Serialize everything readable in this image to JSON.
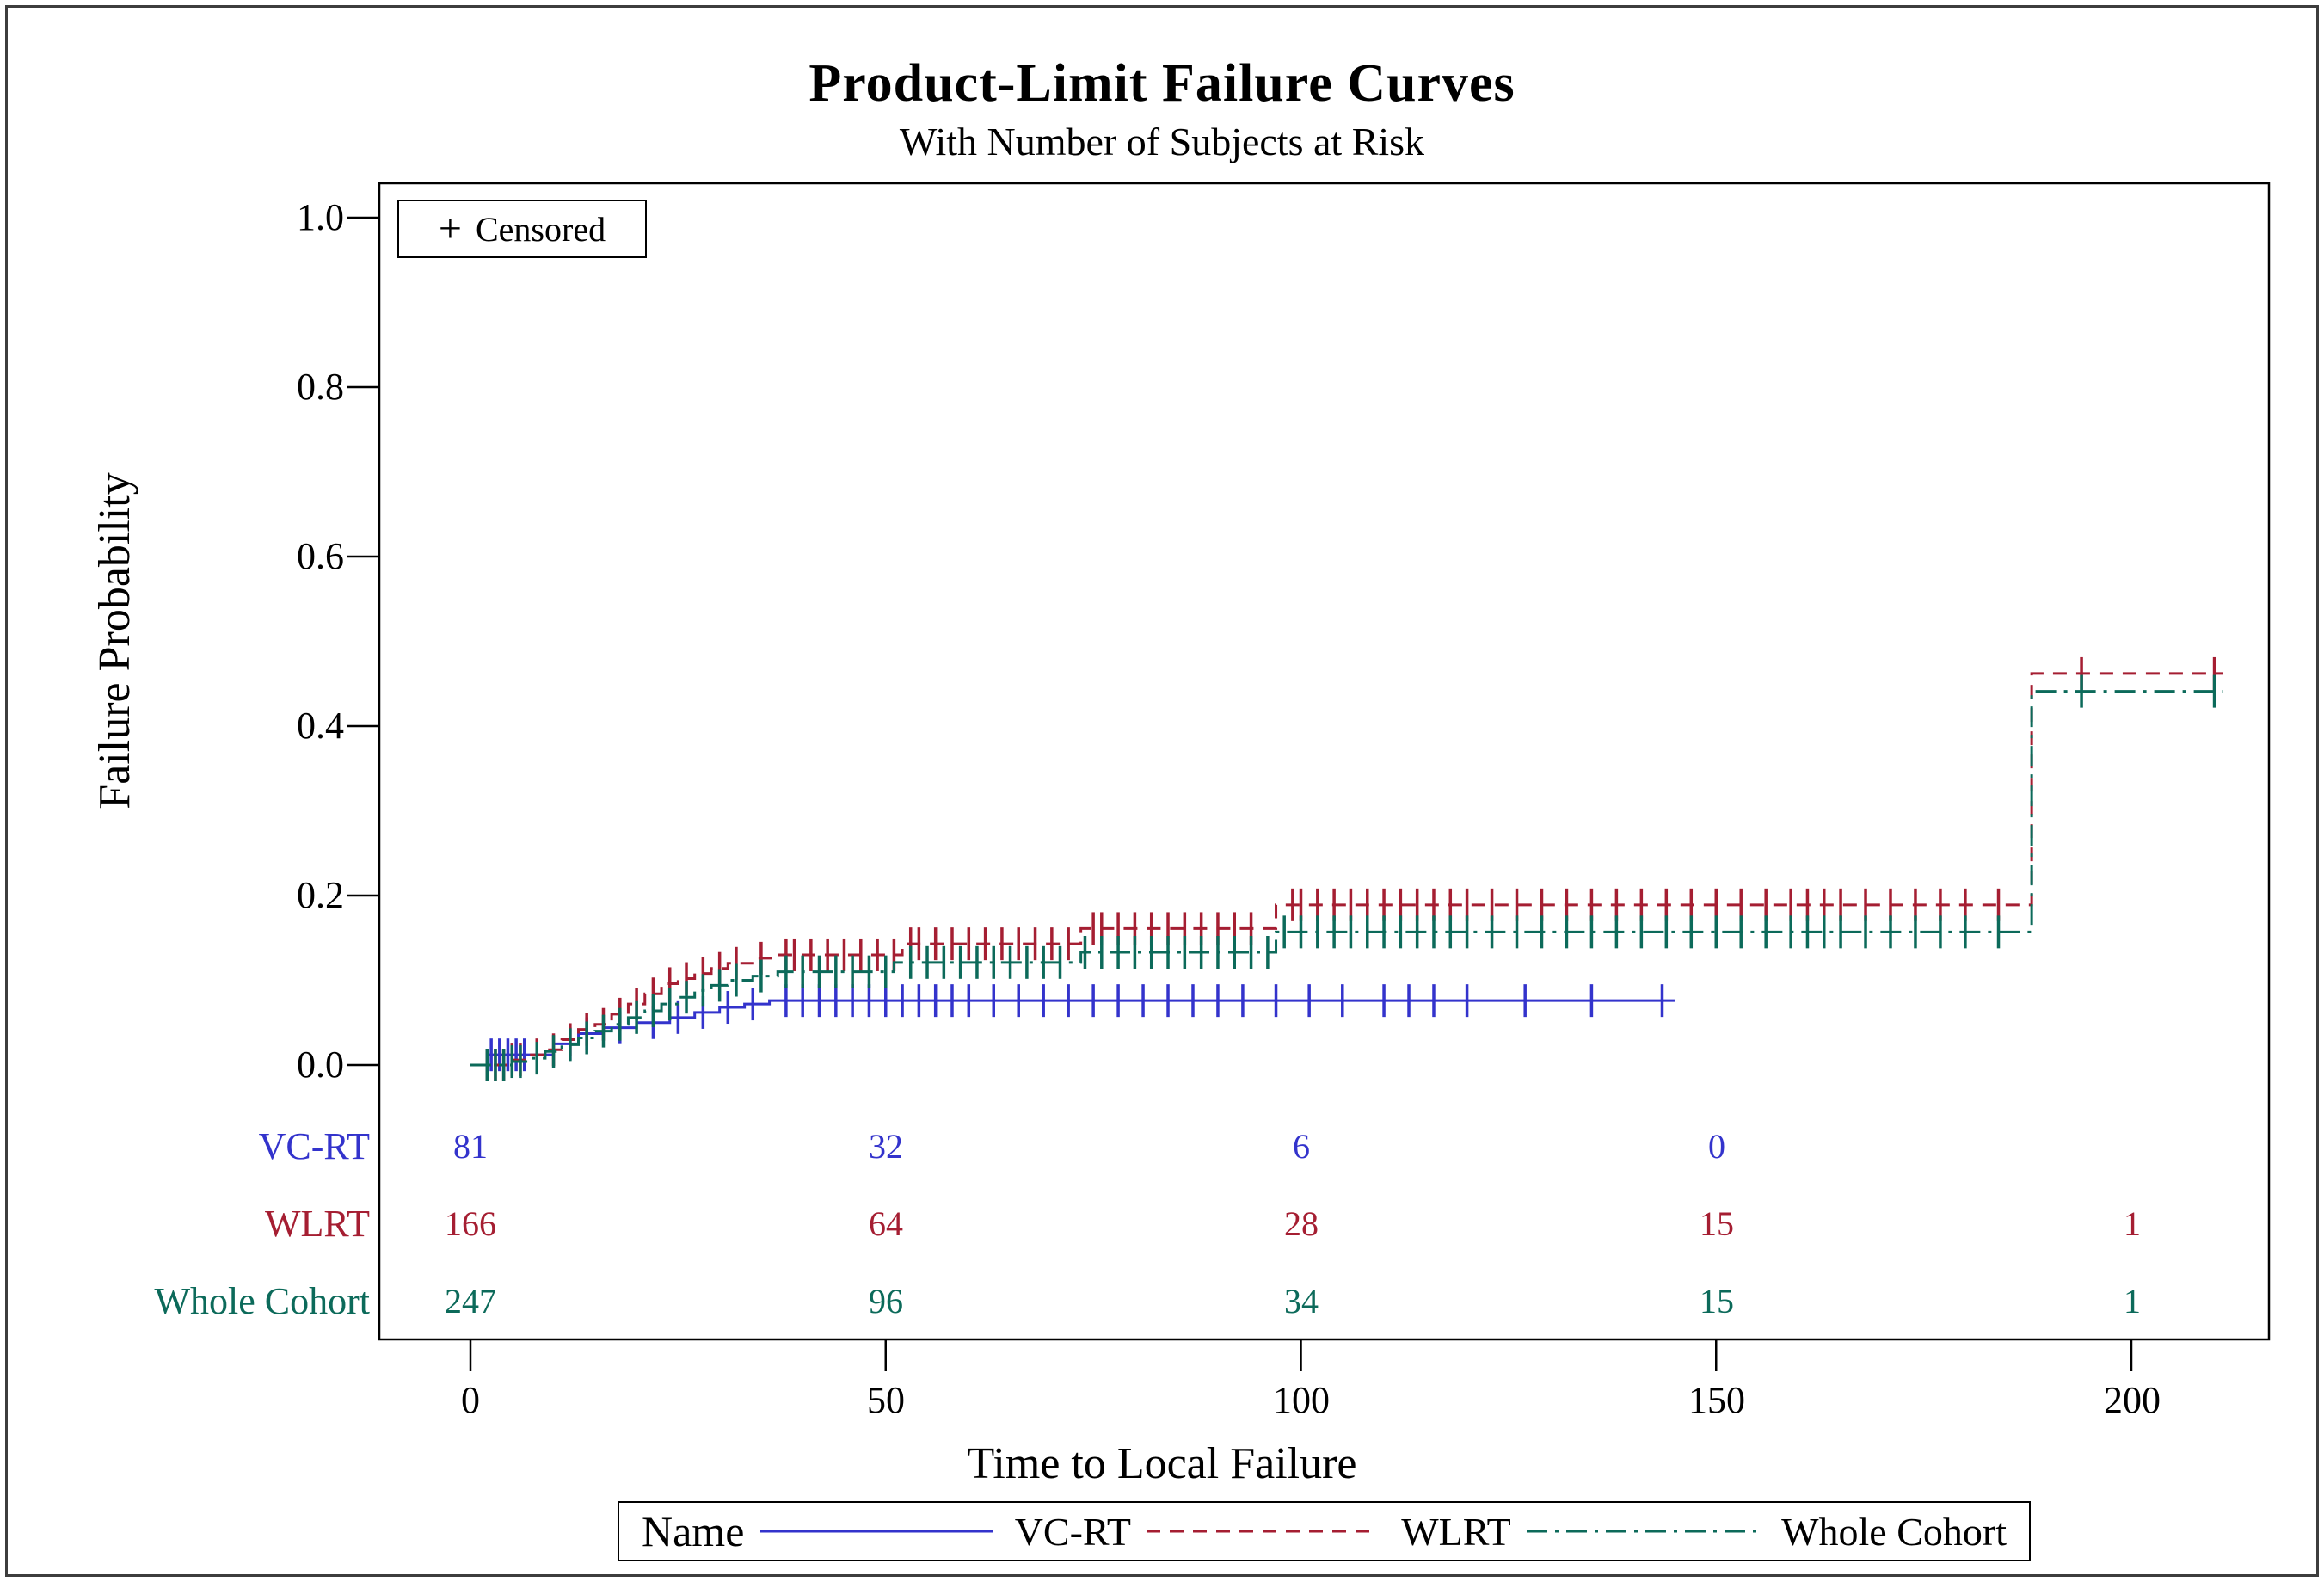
{
  "title": "Product-Limit Failure Curves",
  "subtitle": "With Number of Subjects at Risk",
  "censored_legend": {
    "marker": "+",
    "label": "Censored"
  },
  "y_axis": {
    "label": "Failure Probability",
    "ticks": [
      "1.0",
      "0.8",
      "0.6",
      "0.4",
      "0.2",
      "0.0"
    ],
    "tick_values": [
      1.0,
      0.8,
      0.6,
      0.4,
      0.2,
      0.0
    ]
  },
  "x_axis": {
    "label": "Time to Local Failure",
    "ticks": [
      "0",
      "50",
      "100",
      "150",
      "200"
    ],
    "tick_values": [
      0,
      50,
      100,
      150,
      200
    ]
  },
  "risk_table": {
    "rows": [
      {
        "label": "VC-RT",
        "color": "#3333CC",
        "counts": [
          "81",
          "32",
          "6",
          "0",
          ""
        ]
      },
      {
        "label": "WLRT",
        "color": "#A51E32",
        "counts": [
          "166",
          "64",
          "28",
          "15",
          "1"
        ]
      },
      {
        "label": "Whole Cohort",
        "color": "#0C6A5A",
        "counts": [
          "247",
          "96",
          "34",
          "15",
          "1"
        ]
      }
    ]
  },
  "legend": {
    "title": "Name",
    "items": [
      {
        "label": "VC-RT",
        "color": "#3333CC",
        "dash": "solid"
      },
      {
        "label": "WLRT",
        "color": "#A51E32",
        "dash": "dashed"
      },
      {
        "label": "Whole Cohort",
        "color": "#0C6A5A",
        "dash": "dashdot"
      }
    ]
  },
  "chart_data": {
    "type": "line",
    "title": "Product-Limit Failure Curves",
    "subtitle": "With Number of Subjects at Risk",
    "xlabel": "Time to Local Failure",
    "ylabel": "Failure Probability",
    "xlim": [
      0,
      216
    ],
    "ylim": [
      0,
      1.0
    ],
    "x_ticks": [
      0,
      50,
      100,
      150,
      200
    ],
    "y_ticks": [
      0.0,
      0.2,
      0.4,
      0.6,
      0.8,
      1.0
    ],
    "grid": false,
    "legend_position": "bottom",
    "step": "post",
    "censor_marker": "+",
    "series": [
      {
        "name": "VC-RT",
        "color": "#3333CC",
        "line_style": "solid",
        "points": [
          [
            0,
            0
          ],
          [
            2,
            0.012
          ],
          [
            10,
            0.025
          ],
          [
            13,
            0.037
          ],
          [
            16,
            0.044
          ],
          [
            20,
            0.05
          ],
          [
            24,
            0.056
          ],
          [
            27,
            0.062
          ],
          [
            30,
            0.068
          ],
          [
            33,
            0.072
          ],
          [
            36,
            0.076
          ],
          [
            145,
            0.076
          ]
        ],
        "censor_times": [
          2.5,
          3.5,
          4.5,
          5.5,
          6.5,
          12,
          14,
          18,
          22,
          25,
          28,
          31,
          34,
          38,
          40,
          42,
          44,
          46,
          48,
          50,
          52,
          54,
          56,
          58,
          60,
          63,
          66,
          69,
          72,
          75,
          78,
          81,
          84,
          87,
          90,
          93,
          97,
          101,
          105,
          110,
          113,
          116,
          120,
          127,
          135,
          143.5
        ]
      },
      {
        "name": "WLRT",
        "color": "#A51E32",
        "line_style": "dashed",
        "points": [
          [
            0,
            0
          ],
          [
            5,
            0.006
          ],
          [
            7,
            0.012
          ],
          [
            9,
            0.018
          ],
          [
            11,
            0.03
          ],
          [
            13,
            0.042
          ],
          [
            15,
            0.048
          ],
          [
            17,
            0.06
          ],
          [
            19,
            0.072
          ],
          [
            21,
            0.084
          ],
          [
            23,
            0.096
          ],
          [
            25,
            0.102
          ],
          [
            27,
            0.108
          ],
          [
            29,
            0.114
          ],
          [
            31,
            0.12
          ],
          [
            34,
            0.126
          ],
          [
            37,
            0.13
          ],
          [
            52,
            0.143
          ],
          [
            73.5,
            0.161
          ],
          [
            97,
            0.189
          ],
          [
            188,
            0.462
          ],
          [
            211,
            0.462
          ]
        ],
        "censor_times": [
          2,
          3,
          4,
          5,
          6,
          8,
          10,
          12,
          14,
          16,
          18,
          20,
          22,
          24,
          26,
          28,
          30,
          32,
          35,
          38,
          39,
          41,
          43,
          45,
          47,
          49,
          51,
          53,
          54,
          56,
          58,
          60,
          62,
          64,
          66,
          68,
          70,
          72,
          75,
          76,
          78,
          80,
          82,
          84,
          86,
          88,
          90,
          92,
          94,
          99,
          100,
          102,
          104,
          106,
          108,
          110,
          112,
          114,
          116,
          118,
          120,
          123,
          126,
          129,
          132,
          135,
          138,
          141,
          144,
          147,
          150,
          153,
          156,
          159,
          161,
          163,
          165,
          168,
          171,
          174,
          177,
          180,
          184,
          194,
          210
        ]
      },
      {
        "name": "Whole Cohort",
        "color": "#0C6A5A",
        "line_style": "dashdot",
        "points": [
          [
            0,
            0
          ],
          [
            5,
            0.004
          ],
          [
            7,
            0.008
          ],
          [
            9,
            0.016
          ],
          [
            11,
            0.024
          ],
          [
            13,
            0.032
          ],
          [
            15,
            0.04
          ],
          [
            17,
            0.048
          ],
          [
            19,
            0.056
          ],
          [
            21,
            0.064
          ],
          [
            23,
            0.072
          ],
          [
            25,
            0.08
          ],
          [
            27,
            0.088
          ],
          [
            29,
            0.094
          ],
          [
            31,
            0.1
          ],
          [
            34,
            0.105
          ],
          [
            37,
            0.11
          ],
          [
            51,
            0.121
          ],
          [
            73.5,
            0.133
          ],
          [
            97,
            0.157
          ],
          [
            188,
            0.441
          ],
          [
            211,
            0.441
          ]
        ],
        "censor_times": [
          2,
          3,
          4,
          5,
          6,
          8,
          10,
          12,
          14,
          16,
          18,
          20,
          22,
          24,
          26,
          28,
          30,
          32,
          35,
          38,
          40,
          42,
          44,
          46,
          48,
          50,
          53,
          55,
          57,
          59,
          61,
          63,
          65,
          67,
          69,
          71,
          74,
          76,
          78,
          80,
          82,
          84,
          86,
          88,
          90,
          92,
          94,
          96,
          98,
          100,
          102,
          104,
          106,
          108,
          110,
          112,
          114,
          116,
          118,
          120,
          123,
          126,
          129,
          132,
          135,
          138,
          141,
          144,
          147,
          150,
          153,
          156,
          159,
          161,
          163,
          165,
          168,
          171,
          174,
          177,
          180,
          184,
          194,
          210
        ]
      }
    ],
    "at_risk": {
      "times": [
        0,
        50,
        100,
        150,
        200
      ],
      "groups": [
        {
          "name": "VC-RT",
          "counts": [
            81,
            32,
            6,
            0,
            null
          ]
        },
        {
          "name": "WLRT",
          "counts": [
            166,
            64,
            28,
            15,
            1
          ]
        },
        {
          "name": "Whole Cohort",
          "counts": [
            247,
            96,
            34,
            15,
            1
          ]
        }
      ]
    }
  }
}
